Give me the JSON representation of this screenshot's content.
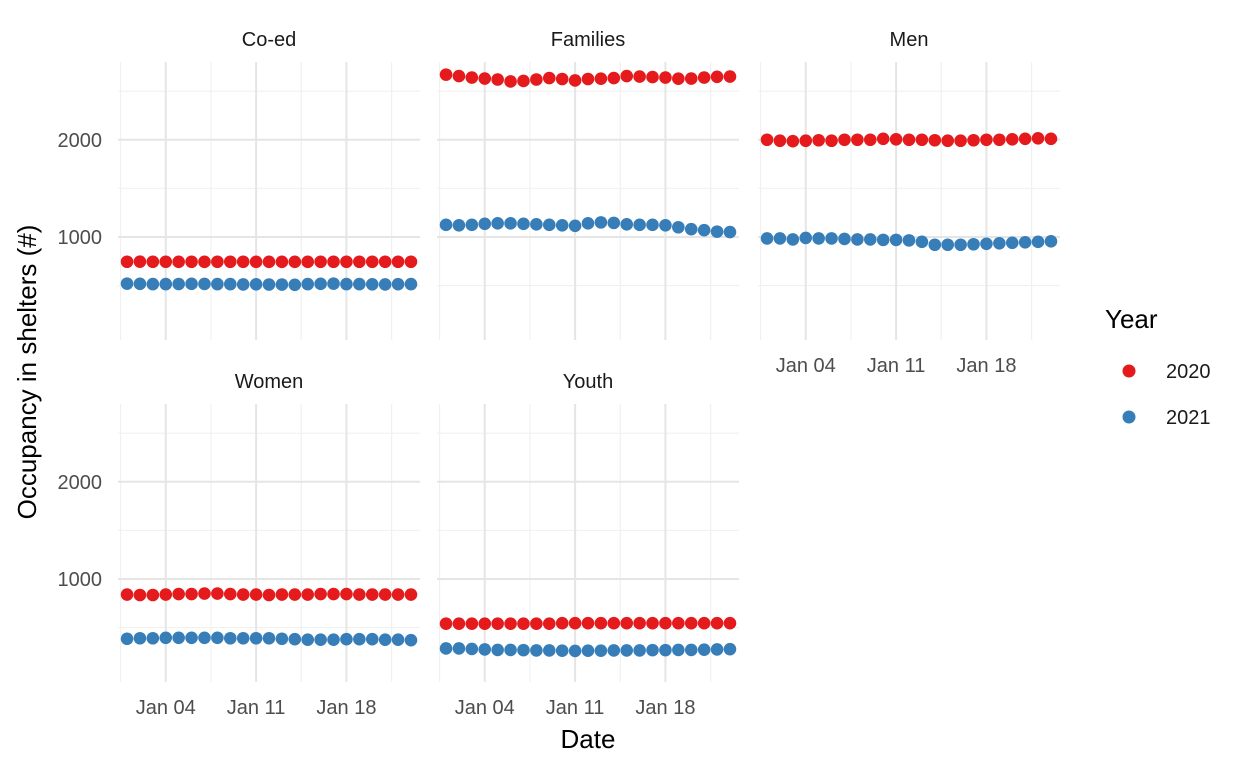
{
  "chart_data": {
    "type": "scatter",
    "title": "",
    "xlabel": "Date",
    "ylabel": "Occupancy in shelters (#)",
    "x_tick_labels": [
      "Jan 04",
      "Jan 11",
      "Jan 18"
    ],
    "x_tick_positions": [
      4,
      11,
      18
    ],
    "xlim": [
      0.3,
      23.7
    ],
    "y_tick_labels": [
      "1000",
      "2000"
    ],
    "y_tick_values": [
      1000,
      2000
    ],
    "ylim": [
      -60,
      2800
    ],
    "grid": true,
    "x": [
      1,
      2,
      3,
      4,
      5,
      6,
      7,
      8,
      9,
      10,
      11,
      12,
      13,
      14,
      15,
      16,
      17,
      18,
      19,
      20,
      21,
      22,
      23
    ],
    "legend": {
      "title": "Year",
      "position": "right",
      "items": [
        {
          "label": "2020",
          "color": "#E41A1C"
        },
        {
          "label": "2021",
          "color": "#377EB8"
        }
      ]
    },
    "facets": [
      {
        "name": "Co-ed",
        "series": [
          {
            "name": "2020",
            "color": "#E41A1C",
            "values": [
              745,
              746,
              745,
              745,
              744,
              745,
              744,
              745,
              745,
              745,
              744,
              744,
              744,
              744,
              744,
              745,
              745,
              745,
              745,
              745,
              745,
              745,
              745
            ]
          },
          {
            "name": "2021",
            "color": "#377EB8",
            "values": [
              520,
              518,
              515,
              515,
              516,
              518,
              517,
              515,
              515,
              512,
              513,
              511,
              510,
              508,
              515,
              518,
              520,
              515,
              515,
              513,
              512,
              514,
              515
            ]
          }
        ]
      },
      {
        "name": "Families",
        "series": [
          {
            "name": "2020",
            "color": "#E41A1C",
            "values": [
              2670,
              2655,
              2640,
              2630,
              2620,
              2600,
              2605,
              2620,
              2635,
              2625,
              2610,
              2625,
              2628,
              2635,
              2655,
              2650,
              2645,
              2640,
              2628,
              2630,
              2640,
              2648,
              2650
            ]
          },
          {
            "name": "2021",
            "color": "#377EB8",
            "values": [
              1125,
              1120,
              1125,
              1135,
              1140,
              1140,
              1135,
              1130,
              1125,
              1120,
              1115,
              1140,
              1150,
              1145,
              1130,
              1125,
              1125,
              1120,
              1100,
              1080,
              1070,
              1055,
              1050
            ]
          }
        ]
      },
      {
        "name": "Men",
        "series": [
          {
            "name": "2020",
            "color": "#E41A1C",
            "values": [
              2000,
              1990,
              1985,
              1990,
              1995,
              1990,
              2000,
              2000,
              2000,
              2010,
              2005,
              2000,
              2000,
              1995,
              1990,
              1990,
              1995,
              2000,
              2000,
              2005,
              2010,
              2015,
              2010
            ]
          },
          {
            "name": "2021",
            "color": "#377EB8",
            "values": [
              985,
              985,
              975,
              990,
              985,
              985,
              980,
              975,
              975,
              970,
              970,
              965,
              950,
              920,
              920,
              920,
              925,
              930,
              935,
              940,
              945,
              950,
              955
            ]
          }
        ]
      },
      {
        "name": "Women",
        "series": [
          {
            "name": "2020",
            "color": "#E41A1C",
            "values": [
              840,
              835,
              835,
              840,
              845,
              845,
              850,
              850,
              845,
              840,
              840,
              835,
              840,
              840,
              840,
              845,
              845,
              845,
              840,
              840,
              840,
              840,
              840
            ]
          },
          {
            "name": "2021",
            "color": "#377EB8",
            "values": [
              385,
              390,
              390,
              395,
              395,
              395,
              395,
              395,
              390,
              390,
              390,
              390,
              385,
              380,
              375,
              375,
              375,
              380,
              380,
              380,
              375,
              375,
              370
            ]
          }
        ]
      },
      {
        "name": "Youth",
        "series": [
          {
            "name": "2020",
            "color": "#E41A1C",
            "values": [
              540,
              540,
              540,
              540,
              540,
              540,
              540,
              540,
              540,
              545,
              545,
              545,
              545,
              545,
              545,
              545,
              545,
              545,
              545,
              545,
              545,
              545,
              545
            ]
          },
          {
            "name": "2021",
            "color": "#377EB8",
            "values": [
              285,
              285,
              280,
              275,
              270,
              270,
              268,
              265,
              265,
              262,
              260,
              262,
              262,
              265,
              265,
              265,
              268,
              268,
              270,
              270,
              272,
              275,
              278
            ]
          }
        ]
      }
    ]
  }
}
